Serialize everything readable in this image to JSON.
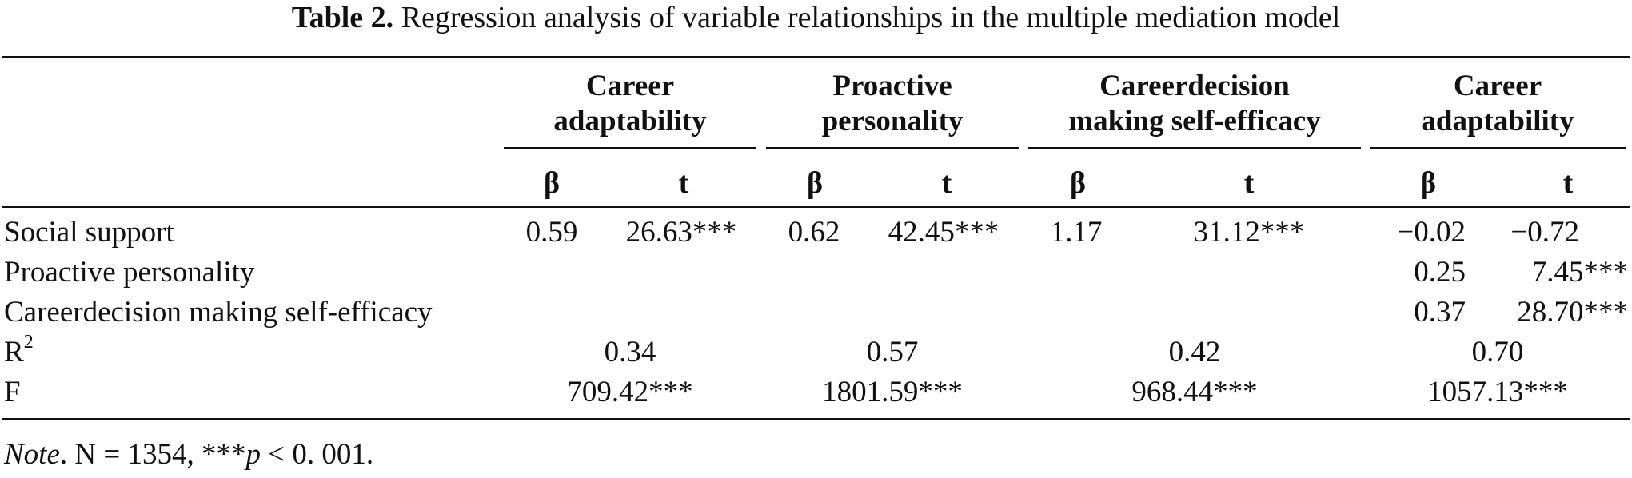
{
  "caption": {
    "label": "Table 2.",
    "text": "Regression analysis of variable relationships in the multiple mediation model"
  },
  "groups": [
    {
      "line1": "Career",
      "line2": "adaptability"
    },
    {
      "line1": "Proactive",
      "line2": "personality"
    },
    {
      "line1": "Careerdecision",
      "line2": "making self-efficacy"
    },
    {
      "line1": "Career",
      "line2": "adaptability"
    }
  ],
  "subheaders": {
    "beta": "β",
    "t": "t"
  },
  "rows": [
    {
      "label": "Social support",
      "cells": [
        "0.59",
        "26.63***",
        "0.62",
        "42.45***",
        "1.17",
        "31.12***",
        "−0.02",
        "−0.72"
      ]
    },
    {
      "label": "Proactive personality",
      "cells": [
        "",
        "",
        "",
        "",
        "",
        "",
        "0.25",
        "7.45***"
      ]
    },
    {
      "label": "Careerdecision making self-efficacy",
      "cells": [
        "",
        "",
        "",
        "",
        "",
        "",
        "0.37",
        "28.70***"
      ]
    }
  ],
  "r2": {
    "label": "R",
    "sup": "2",
    "values": [
      "0.34",
      "0.57",
      "0.42",
      "0.70"
    ]
  },
  "f": {
    "label": "F",
    "values": [
      "709.42***",
      "1801.59***",
      "968.44***",
      "1057.13***"
    ]
  },
  "note": {
    "italic": "Note",
    "text": ". N = 1354, ***",
    "p": "p",
    "rest": " < 0. 001."
  }
}
